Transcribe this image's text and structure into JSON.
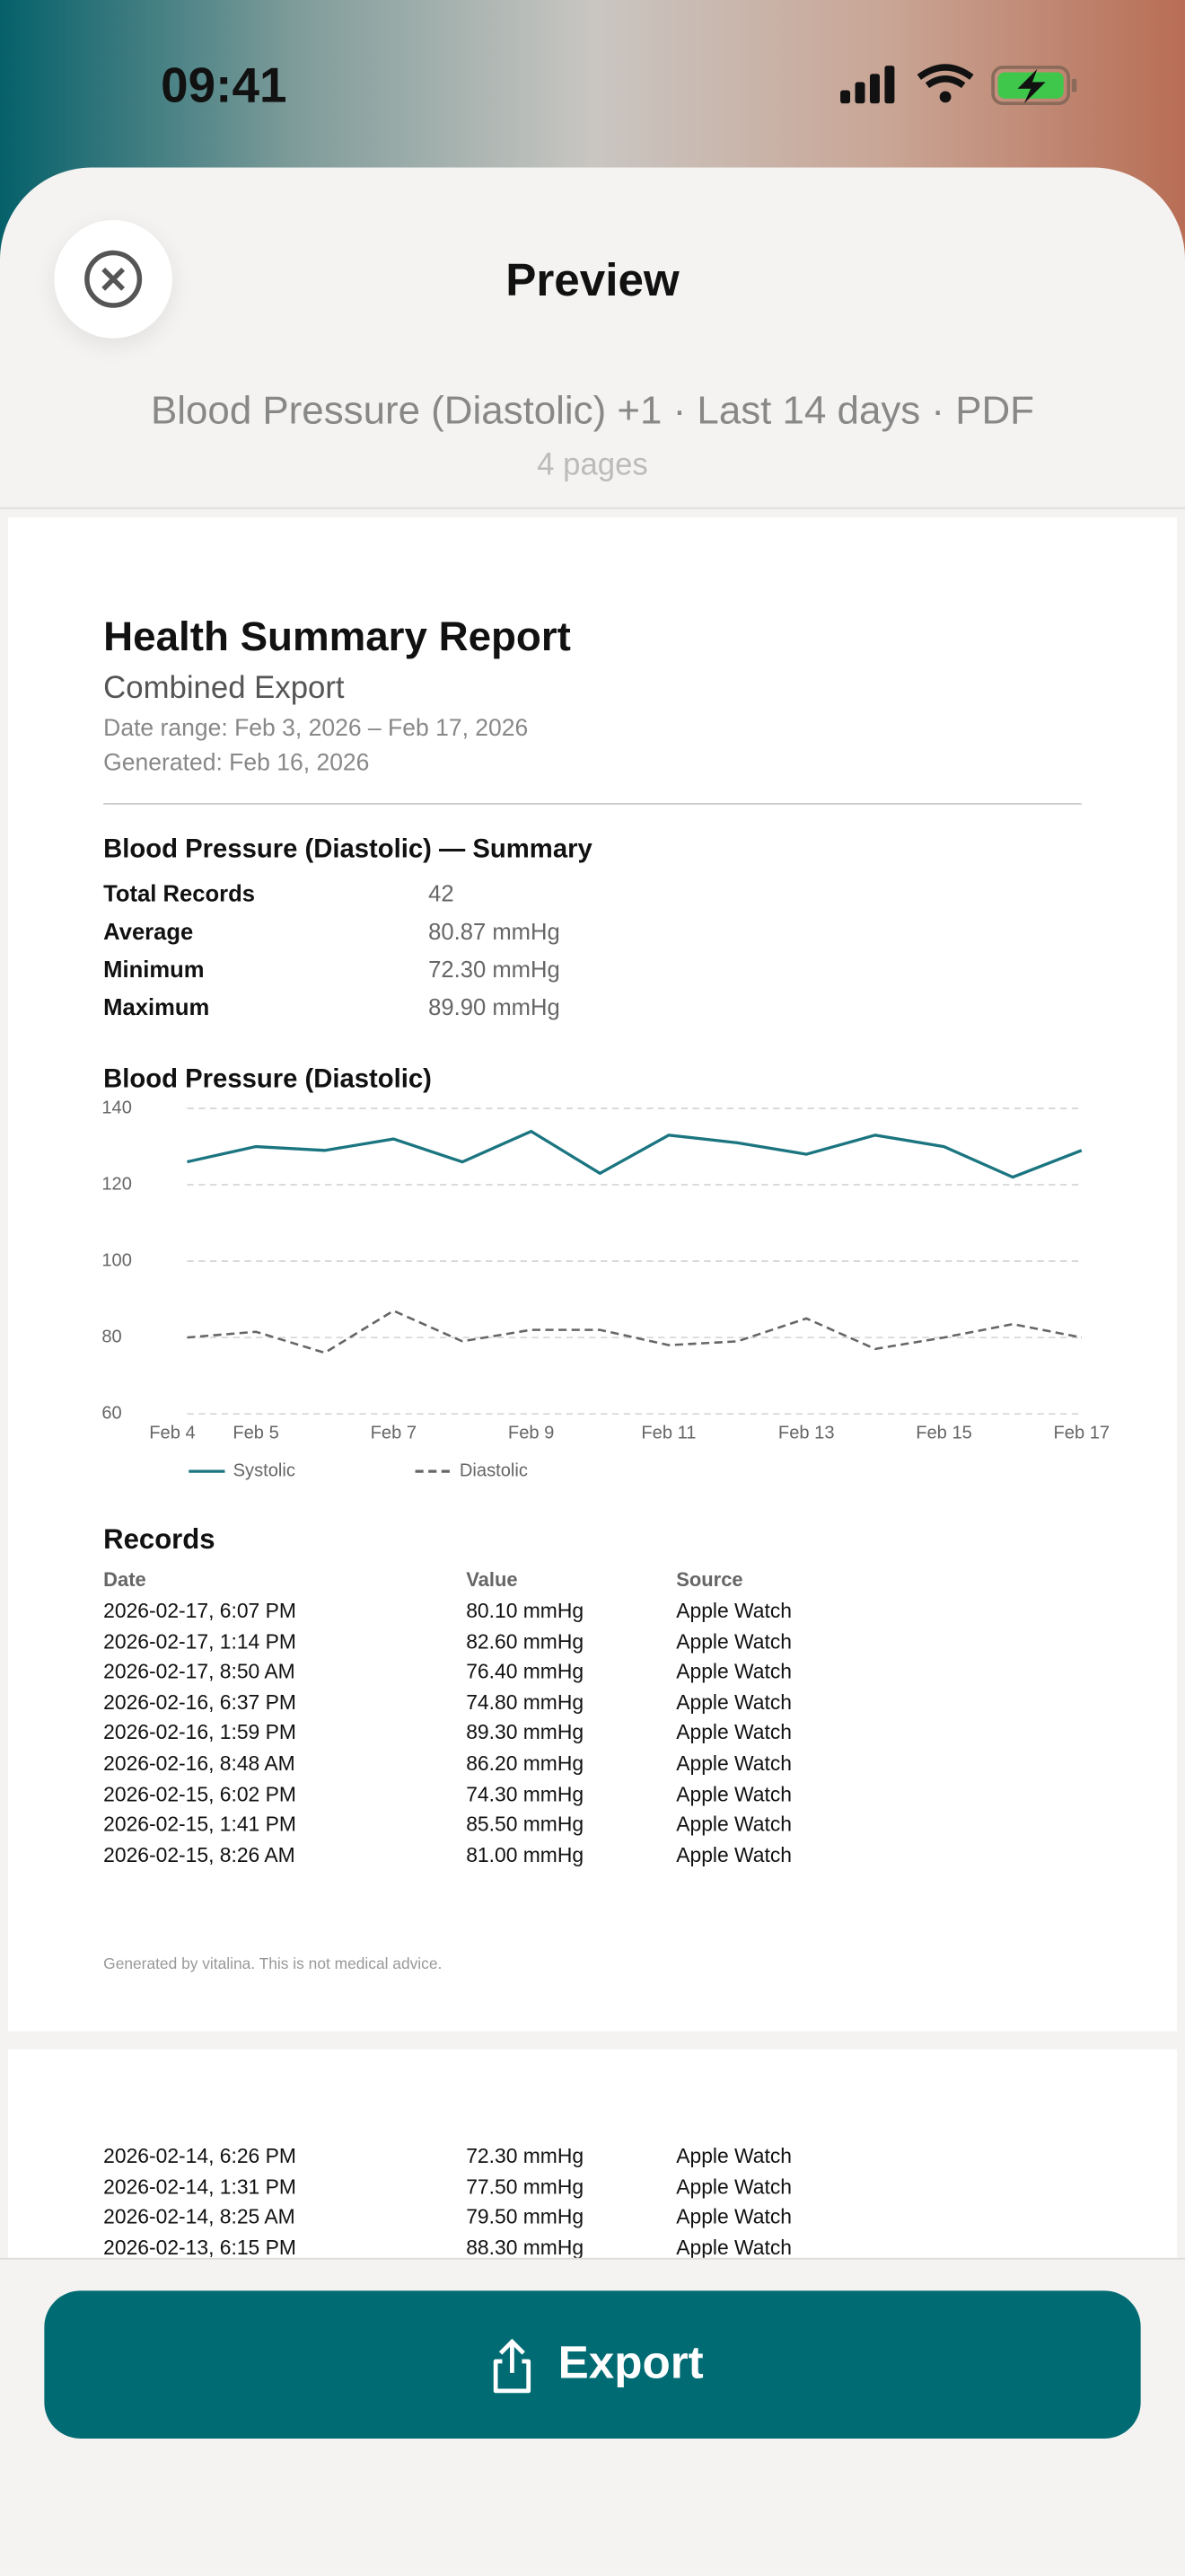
{
  "status_bar": {
    "time": "09:41"
  },
  "header": {
    "title": "Preview",
    "summary": "Blood Pressure (Diastolic) +1 · Last 14 days · PDF",
    "pages": "4 pages"
  },
  "report": {
    "title": "Health Summary Report",
    "subtitle": "Combined Export",
    "date_range": "Date range: Feb 3, 2026 – Feb 17, 2026",
    "generated": "Generated: Feb 16, 2026",
    "summary": {
      "heading": "Blood Pressure (Diastolic) — Summary",
      "rows": [
        [
          "Total Records",
          "42"
        ],
        [
          "Average",
          "80.87 mmHg"
        ],
        [
          "Minimum",
          "72.30 mmHg"
        ],
        [
          "Maximum",
          "89.90 mmHg"
        ]
      ]
    },
    "records": {
      "heading": "Records",
      "columns": [
        "Date",
        "Value",
        "Source"
      ],
      "rows": [
        [
          "2026-02-17, 6:07 PM",
          "80.10 mmHg",
          "Apple Watch"
        ],
        [
          "2026-02-17, 1:14 PM",
          "82.60 mmHg",
          "Apple Watch"
        ],
        [
          "2026-02-17, 8:50 AM",
          "76.40 mmHg",
          "Apple Watch"
        ],
        [
          "2026-02-16, 6:37 PM",
          "74.80 mmHg",
          "Apple Watch"
        ],
        [
          "2026-02-16, 1:59 PM",
          "89.30 mmHg",
          "Apple Watch"
        ],
        [
          "2026-02-16, 8:48 AM",
          "86.20 mmHg",
          "Apple Watch"
        ],
        [
          "2026-02-15, 6:02 PM",
          "74.30 mmHg",
          "Apple Watch"
        ],
        [
          "2026-02-15, 1:41 PM",
          "85.50 mmHg",
          "Apple Watch"
        ],
        [
          "2026-02-15, 8:26 AM",
          "81.00 mmHg",
          "Apple Watch"
        ]
      ]
    },
    "footer": "Generated by vitalina. This is not medical advice."
  },
  "page_2": {
    "rows": [
      [
        "2026-02-14, 6:26 PM",
        "72.30 mmHg",
        "Apple Watch"
      ],
      [
        "2026-02-14, 1:31 PM",
        "77.50 mmHg",
        "Apple Watch"
      ],
      [
        "2026-02-14, 8:25 AM",
        "79.50 mmHg",
        "Apple Watch"
      ],
      [
        "2026-02-13, 6:15 PM",
        "88.30 mmHg",
        "Apple Watch"
      ]
    ]
  },
  "chart_data": {
    "type": "line",
    "title": "Blood Pressure (Diastolic)",
    "categories": [
      "Feb 4",
      "Feb 5",
      null,
      "Feb 7",
      null,
      "Feb 9",
      null,
      "Feb 11",
      null,
      "Feb 13",
      null,
      "Feb 15",
      null,
      "Feb 17"
    ],
    "series": [
      {
        "name": "Systolic",
        "color": "#1a7580",
        "line_style": "solid",
        "values": [
          126,
          130,
          129,
          132,
          126,
          134,
          123,
          133,
          131,
          128,
          133,
          130,
          122,
          129
        ]
      },
      {
        "name": "Diastolic",
        "color": "#666666",
        "line_style": "dashed",
        "values": [
          80,
          81.5,
          76,
          87,
          79,
          82,
          82,
          78,
          79,
          85,
          77,
          80,
          83.5,
          80
        ]
      }
    ],
    "ylim": [
      60,
      140
    ],
    "yticks": [
      60,
      80,
      100,
      120,
      140
    ],
    "grid": true,
    "legend": "bottom-left"
  },
  "export_button": "Export"
}
